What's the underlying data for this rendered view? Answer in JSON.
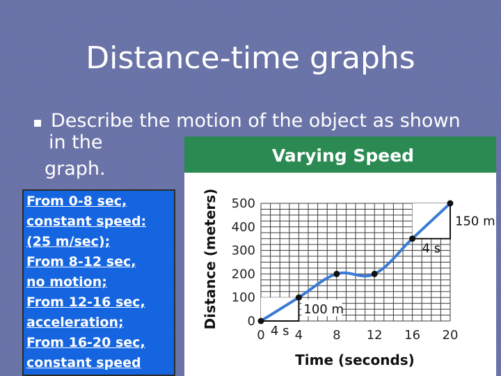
{
  "slide": {
    "title": "Distance-time graphs",
    "bullet": [
      "Describe the motion of the object as shown",
      "in the",
      "graph."
    ],
    "answer_lines": [
      "From 0-8 sec,",
      "constant speed:",
      "(25 m/sec);",
      "From 8-12 sec,",
      "no motion;",
      "From 12-16 sec,",
      "acceleration;",
      "From 16-20 sec,",
      "constant speed"
    ]
  },
  "colors": {
    "background": "#6a73a8",
    "answer_box": "#1565e0",
    "chart_header": "#2a8a52",
    "line": "#3a7bd5",
    "grid": "#3a3a3a"
  },
  "chart_data": {
    "type": "line",
    "title": "Varying Speed",
    "xlabel": "Time (seconds)",
    "ylabel": "Distance (meters)",
    "xlim": [
      0,
      20
    ],
    "ylim": [
      0,
      500
    ],
    "x_ticks": [
      "0",
      "4",
      "8",
      "12",
      "16",
      "20"
    ],
    "y_ticks": [
      "0",
      "100",
      "200",
      "300",
      "400",
      "500"
    ],
    "grid": true,
    "series": [
      {
        "x": [
          0,
          4,
          8,
          12,
          16,
          20
        ],
        "y": [
          0,
          100,
          200,
          200,
          350,
          500
        ]
      }
    ],
    "annotations": {
      "triangle_1": {
        "run_label": "4 s",
        "rise_label": "100 m",
        "x": [
          0,
          4
        ],
        "y": [
          0,
          100
        ]
      },
      "triangle_2": {
        "run_label": "4 s",
        "rise_label": "150 m",
        "x": [
          16,
          20
        ],
        "y": [
          350,
          500
        ]
      }
    }
  }
}
